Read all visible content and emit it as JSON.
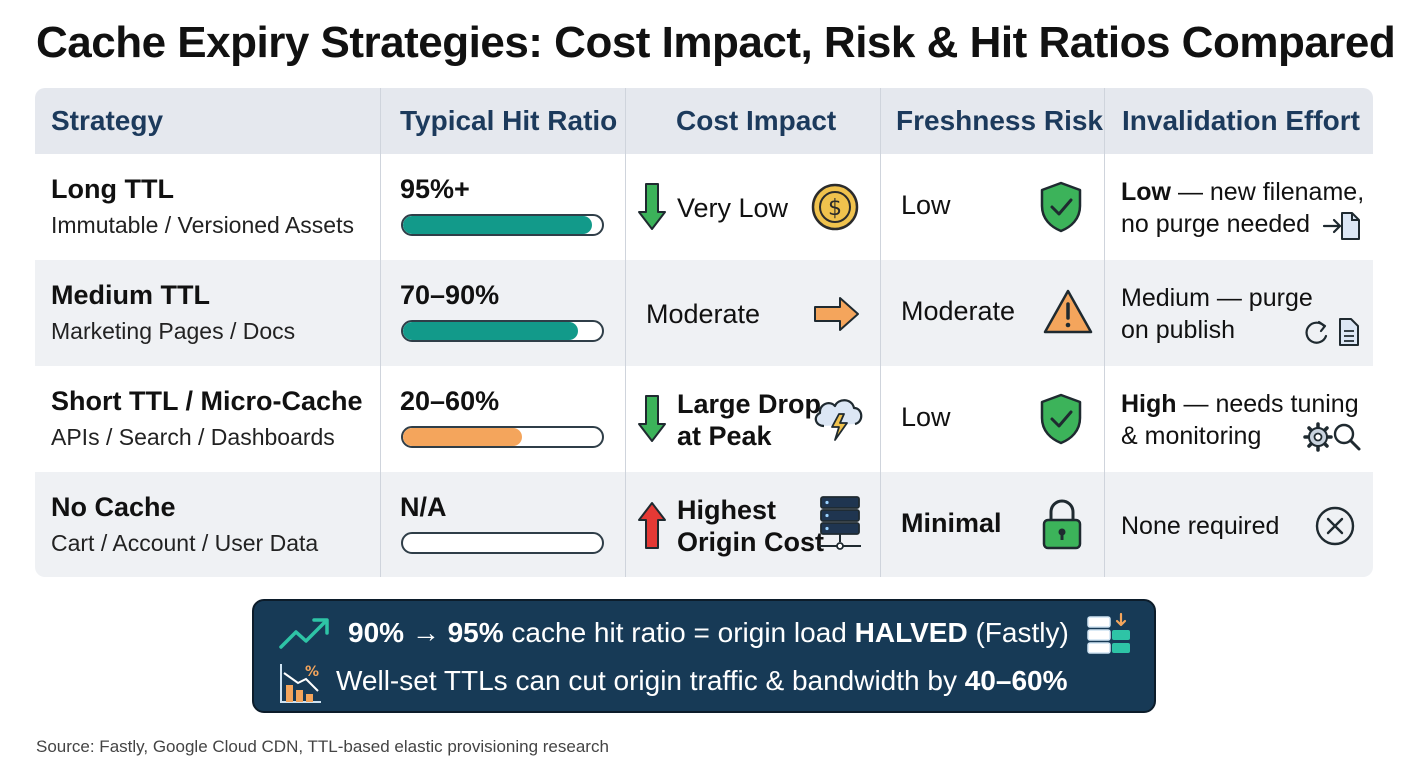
{
  "title": "Cache Expiry Strategies: Cost Impact, Risk & Hit Ratios Compared",
  "headers": {
    "strategy": "Strategy",
    "hit_ratio": "Typical Hit Ratio",
    "cost": "Cost Impact",
    "freshness": "Freshness Risk",
    "invalidation": "Invalidation Effort"
  },
  "rows": [
    {
      "name": "Long TTL",
      "sub": "Immutable / Versioned Assets",
      "hit_label": "95%+",
      "hit_fill": 0.95,
      "hit_color": "#129a8a",
      "cost_line1": "Very Low",
      "cost_line2": "",
      "cost_arrow": "down-arrow-icon",
      "cost_icon": "coin-icon",
      "freshness": "Low",
      "freshness_icon": "shield-check-icon",
      "inv_strong": "Low",
      "inv_rest": " — new filename,",
      "inv_line2": "no purge needed",
      "inv_icon": "file-arrow-icon"
    },
    {
      "name": "Medium TTL",
      "sub": "Marketing Pages / Docs",
      "hit_label": "70–90%",
      "hit_fill": 0.88,
      "hit_color": "#129a8a",
      "cost_line1": "Moderate",
      "cost_line2": "",
      "cost_arrow": "",
      "cost_icon": "right-arrow-icon",
      "freshness": "Moderate",
      "freshness_icon": "warning-icon",
      "inv_strong": "",
      "inv_rest": "Medium — purge",
      "inv_line2": "on publish",
      "inv_icon": "refresh-doc-icon"
    },
    {
      "name": "Short TTL / Micro-Cache",
      "sub": "APIs / Search / Dashboards",
      "hit_label": "20–60%",
      "hit_fill": 0.6,
      "hit_color": "#f4a55c",
      "cost_line1": "Large Drop",
      "cost_line2": "at Peak",
      "cost_arrow": "down-arrow-icon",
      "cost_icon": "storm-cloud-icon",
      "freshness": "Low",
      "freshness_icon": "shield-check-icon",
      "inv_strong": "High",
      "inv_rest": " — needs tuning",
      "inv_line2": "& monitoring",
      "inv_icon": "gear-search-icon"
    },
    {
      "name": "No Cache",
      "sub": "Cart / Account / User Data",
      "hit_label": "N/A",
      "hit_fill": 0,
      "hit_color": "#ffffff",
      "cost_line1": "Highest",
      "cost_line2": "Origin Cost",
      "cost_arrow": "up-arrow-icon",
      "cost_icon": "server-icon",
      "freshness": "Minimal",
      "freshness_icon": "lock-icon",
      "inv_strong": "",
      "inv_rest": "None required",
      "inv_line2": "",
      "inv_icon": "close-circle-icon"
    }
  ],
  "callout": {
    "line1_a": "90% → 95%",
    "line1_b": " cache hit ratio = origin load ",
    "line1_c": "HALVED",
    "line1_d": " (Fastly)",
    "line2_a": "Well-set TTLs can cut origin traffic & bandwidth by ",
    "line2_b": "40–60%"
  },
  "source": "Source: Fastly, Google Cloud CDN, TTL-based elastic provisioning research",
  "colors": {
    "header_bg": "#e5e8ee",
    "header_text": "#1c3a5c",
    "row_alt": "#eff1f4",
    "teal": "#129a8a",
    "orange": "#f4a55c",
    "green": "#3cb35a",
    "red": "#e53935",
    "callout_bg": "#173a56"
  }
}
